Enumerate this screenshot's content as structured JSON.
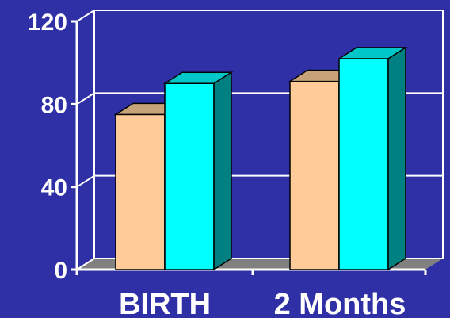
{
  "chart_data": {
    "type": "bar",
    "style": "3d-clustered",
    "categories": [
      "BIRTH",
      "2 Months"
    ],
    "series": [
      {
        "values": [
          75,
          91
        ],
        "color": "#ffcc99",
        "top_color": "#c8a37a",
        "side_color": "#b08a64"
      },
      {
        "values": [
          90,
          102
        ],
        "color": "#00ffff",
        "top_color": "#00c8c8",
        "side_color": "#008080"
      }
    ],
    "yticks": [
      "0",
      "40",
      "80",
      "120"
    ],
    "ylim": [
      0,
      120
    ],
    "grid": true,
    "legend": "none",
    "background_color": "#2f2fa6",
    "floor_color": "#808080",
    "axis_color": "#ffffff"
  }
}
